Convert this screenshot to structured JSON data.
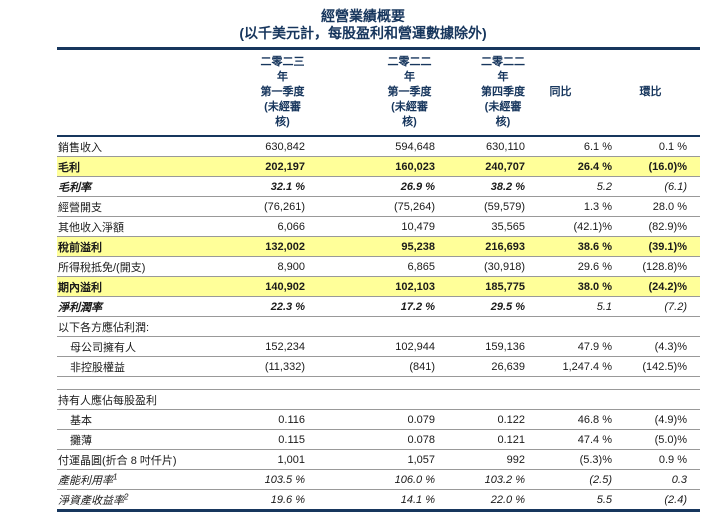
{
  "title": "經營業績概要",
  "subtitle": "(以千美元計，每股盈利和營運數據除外)",
  "colors": {
    "navy": "#17365D",
    "highlight_yellow": "#FFFF99",
    "row_border_gray": "#999999"
  },
  "columns": {
    "q1_2023": {
      "line1": "二零二三年",
      "line2": "第一季度",
      "line3": "(未經審核)"
    },
    "q1_2022": {
      "line1": "二零二二年",
      "line2": "第一季度",
      "line3": "(未經審核)"
    },
    "q4_2022": {
      "line1": "二零二二年",
      "line2": "第四季度",
      "line3": "(未經審核)"
    },
    "yoy": "同比",
    "qoq": "環比"
  },
  "rows": [
    {
      "label": "銷售收入",
      "values": [
        "630,842",
        "594,648",
        "630,110",
        "6.1 %",
        "0.1 %"
      ],
      "style": "normal"
    },
    {
      "label": "毛利",
      "values": [
        "202,197",
        "160,023",
        "240,707",
        "26.4 %",
        "(16.0)%"
      ],
      "style": "highlight"
    },
    {
      "label": "毛利率",
      "values": [
        "32.1 %",
        "26.9 %",
        "38.2 %",
        "5.2",
        "(6.1)"
      ],
      "style": "ratio"
    },
    {
      "label": "經營開支",
      "values": [
        "(76,261)",
        "(75,264)",
        "(59,579)",
        "1.3 %",
        "28.0 %"
      ],
      "style": "normal"
    },
    {
      "label": "其他收入淨額",
      "values": [
        "6,066",
        "10,479",
        "35,565",
        "(42.1)%",
        "(82.9)%"
      ],
      "style": "normal"
    },
    {
      "label": "稅前溢利",
      "values": [
        "132,002",
        "95,238",
        "216,693",
        "38.6 %",
        "(39.1)%"
      ],
      "style": "highlight"
    },
    {
      "label": "所得稅抵免/(開支)",
      "values": [
        "8,900",
        "6,865",
        "(30,918)",
        "29.6 %",
        "(128.8)%"
      ],
      "style": "normal"
    },
    {
      "label": "期內溢利",
      "values": [
        "140,902",
        "102,103",
        "185,775",
        "38.0 %",
        "(24.2)%"
      ],
      "style": "highlight"
    },
    {
      "label": "淨利潤率",
      "values": [
        "22.3 %",
        "17.2 %",
        "29.5 %",
        "5.1",
        "(7.2)"
      ],
      "style": "ratio"
    },
    {
      "label": "以下各方應佔利潤:",
      "values": [
        "",
        "",
        "",
        "",
        ""
      ],
      "style": "section"
    },
    {
      "label": "母公司擁有人",
      "values": [
        "152,234",
        "102,944",
        "159,136",
        "47.9 %",
        "(4.3)%"
      ],
      "style": "normal",
      "indent": true
    },
    {
      "label": "非控股權益",
      "values": [
        "(11,332)",
        "(841)",
        "26,639",
        "1,247.4 %",
        "(142.5)%"
      ],
      "style": "normal",
      "indent": true
    },
    {
      "style": "spacer"
    },
    {
      "label": "持有人應佔每股盈利",
      "values": [
        "",
        "",
        "",
        "",
        ""
      ],
      "style": "section"
    },
    {
      "label": "基本",
      "values": [
        "0.116",
        "0.079",
        "0.122",
        "46.8 %",
        "(4.9)%"
      ],
      "style": "normal",
      "indent": true
    },
    {
      "label": "攤薄",
      "values": [
        "0.115",
        "0.078",
        "0.121",
        "47.4 %",
        "(5.0)%"
      ],
      "style": "normal",
      "indent": true
    },
    {
      "label": "付運晶圓(折合 8 吋仟片)",
      "values": [
        "1,001",
        "1,057",
        "992",
        "(5.3)%",
        "0.9 %"
      ],
      "style": "normal"
    },
    {
      "label": "產能利用率",
      "sup": "1",
      "values": [
        "103.5 %",
        "106.0 %",
        "103.2 %",
        "(2.5)",
        "0.3"
      ],
      "style": "ital"
    },
    {
      "label": "淨資產收益率",
      "sup": "2",
      "values": [
        "19.6 %",
        "14.1 %",
        "22.0 %",
        "5.5",
        "(2.4)"
      ],
      "style": "ital"
    }
  ]
}
